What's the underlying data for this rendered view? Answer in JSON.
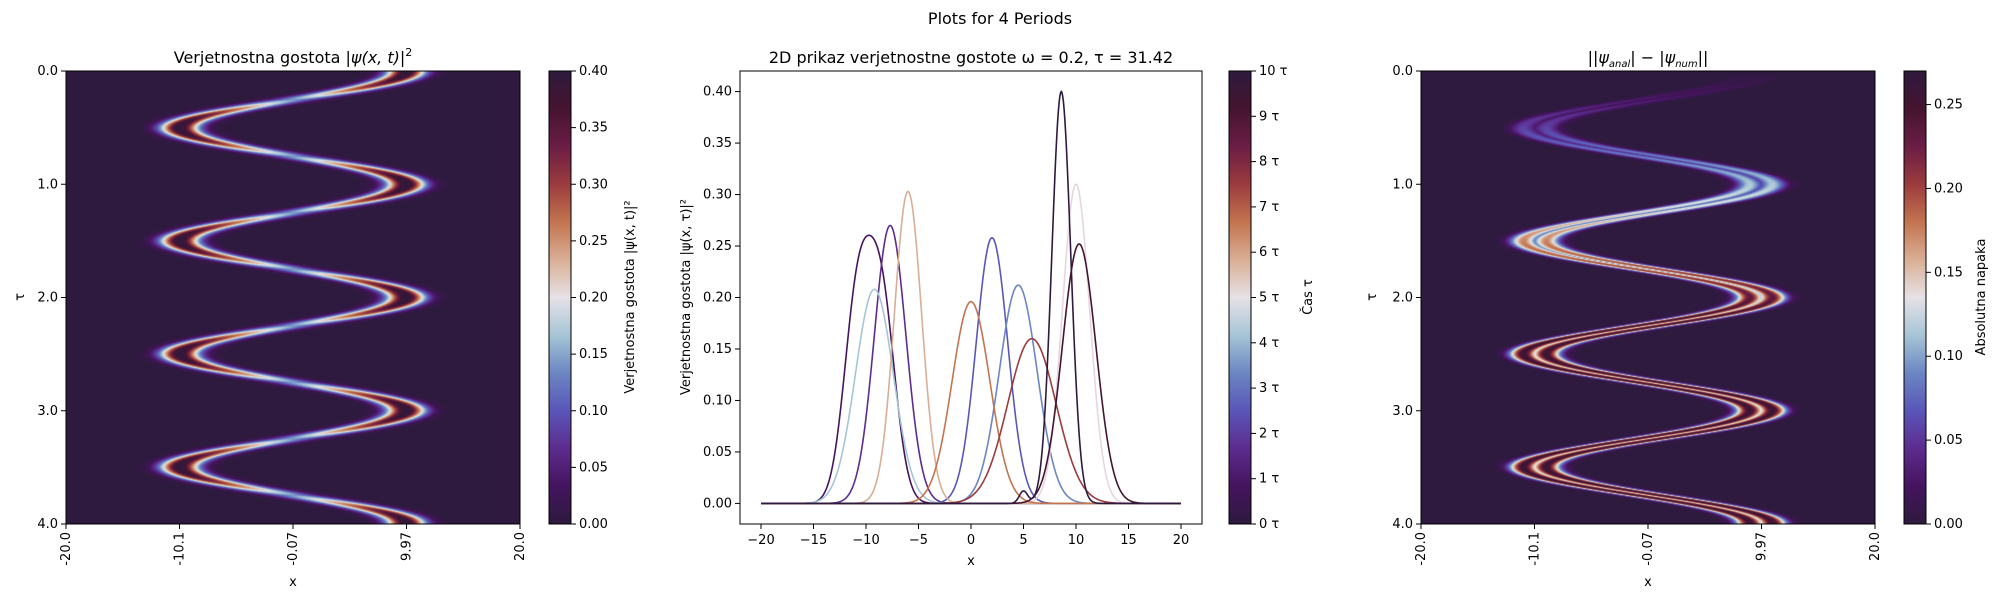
{
  "figure_title": "Plots for 4 Periods",
  "colormap": [
    "#2e1a3e",
    "#45145e",
    "#5c2c8e",
    "#5a56b8",
    "#6b86c2",
    "#a6c5d6",
    "#e6e1e6",
    "#d9ae94",
    "#c3744f",
    "#9b3b3e",
    "#6b1d45",
    "#45142f",
    "#2e1a3e"
  ],
  "chart_data": [
    {
      "type": "heatmap",
      "title_prefix": "Verjetnostna gostota ",
      "title_math": "|ψ(x, t)|",
      "title_sup": "2",
      "xlabel": "x",
      "ylabel": "τ",
      "x_ticklabels": [
        "-20.0",
        "-10.1",
        "-0.07",
        "9.97",
        "20.0"
      ],
      "y_ticklabels": [
        "0.0",
        "1.0",
        "2.0",
        "3.0",
        "4.0"
      ],
      "xlim": [
        -20,
        20
      ],
      "ylim": [
        0,
        4
      ],
      "description_values": {
        "packet_center_amplitude": 10,
        "period_tau": 1,
        "packet_sigma": 1.5
      },
      "colorbar": {
        "label": "Verjetnostna gostota |ψ(x, t)|²",
        "range": [
          0,
          0.4
        ],
        "ticks": [
          "0.00",
          "0.05",
          "0.10",
          "0.15",
          "0.20",
          "0.25",
          "0.30",
          "0.35",
          "0.40"
        ]
      }
    },
    {
      "type": "line",
      "title": "2D prikaz verjetnostne gostote ω = 0.2, τ = 31.42",
      "xlabel": "x",
      "ylabel": "Verjetnostna gostota |ψ(x, τ)|²",
      "xlim": [
        -22,
        22
      ],
      "ylim": [
        -0.02,
        0.42
      ],
      "x_ticks": [
        "−20",
        "−15",
        "−10",
        "−5",
        "0",
        "5",
        "10",
        "15",
        "20"
      ],
      "y_ticks": [
        "0.00",
        "0.05",
        "0.10",
        "0.15",
        "0.20",
        "0.25",
        "0.30",
        "0.35",
        "0.40"
      ],
      "series": [
        {
          "time": 0,
          "color": "#45145e",
          "peaks": [
            {
              "center": -10.8,
              "amp": 0.195,
              "sigma": 1.3
            },
            {
              "center": -8.5,
              "amp": 0.19,
              "sigma": 1.3
            }
          ]
        },
        {
          "time": 1,
          "color": "#5c2c8e",
          "peaks": [
            {
              "center": -7.7,
              "amp": 0.27,
              "sigma": 1.5
            }
          ]
        },
        {
          "time": 2,
          "color": "#5a56b8",
          "peaks": [
            {
              "center": 2.0,
              "amp": 0.258,
              "sigma": 1.5
            }
          ]
        },
        {
          "time": 3,
          "color": "#6b86c2",
          "peaks": [
            {
              "center": 4.5,
              "amp": 0.212,
              "sigma": 1.8
            }
          ]
        },
        {
          "time": 4,
          "color": "#a6c5d6",
          "peaks": [
            {
              "center": -9.2,
              "amp": 0.208,
              "sigma": 1.8
            }
          ]
        },
        {
          "time": 5,
          "color": "#e6d6e0",
          "peaks": [
            {
              "center": 10.0,
              "amp": 0.31,
              "sigma": 1.3
            }
          ]
        },
        {
          "time": 6,
          "color": "#d9ae94",
          "peaks": [
            {
              "center": -6.0,
              "amp": 0.303,
              "sigma": 1.3
            }
          ]
        },
        {
          "time": 7,
          "color": "#c3744f",
          "peaks": [
            {
              "center": 0.0,
              "amp": 0.196,
              "sigma": 1.8
            }
          ]
        },
        {
          "time": 8,
          "color": "#9b3b3e",
          "peaks": [
            {
              "center": 5.8,
              "amp": 0.16,
              "sigma": 2.3
            }
          ]
        },
        {
          "time": 9,
          "color": "#45142f",
          "peaks": [
            {
              "center": 10.3,
              "amp": 0.252,
              "sigma": 1.6
            }
          ]
        },
        {
          "time": 10,
          "color": "#2e1a3e",
          "peaks": [
            {
              "center": 8.6,
              "amp": 0.4,
              "sigma": 0.9
            },
            {
              "center": 5.0,
              "amp": 0.012,
              "sigma": 0.4
            }
          ]
        }
      ],
      "colorbar": {
        "label": "Čas τ",
        "ticks": [
          "0 τ",
          "1 τ",
          "2 τ",
          "3 τ",
          "4 τ",
          "5 τ",
          "6 τ",
          "7 τ",
          "8 τ",
          "9 τ",
          "10 τ"
        ]
      }
    },
    {
      "type": "heatmap",
      "title_math": "||ψ",
      "title_sub1": "anal",
      "title_mid": "| − |ψ",
      "title_sub2": "num",
      "title_end": "||",
      "xlabel": "x",
      "ylabel": "τ",
      "x_ticklabels": [
        "-20.0",
        "-10.1",
        "-0.07",
        "9.97",
        "20.0"
      ],
      "y_ticklabels": [
        "0.0",
        "1.0",
        "2.0",
        "3.0",
        "4.0"
      ],
      "xlim": [
        -20,
        20
      ],
      "ylim": [
        0,
        4
      ],
      "colorbar": {
        "label": "Absolutna napaka",
        "range": [
          0,
          0.27
        ],
        "ticks": [
          "0.00",
          "0.05",
          "0.10",
          "0.15",
          "0.20",
          "0.25"
        ]
      }
    }
  ]
}
